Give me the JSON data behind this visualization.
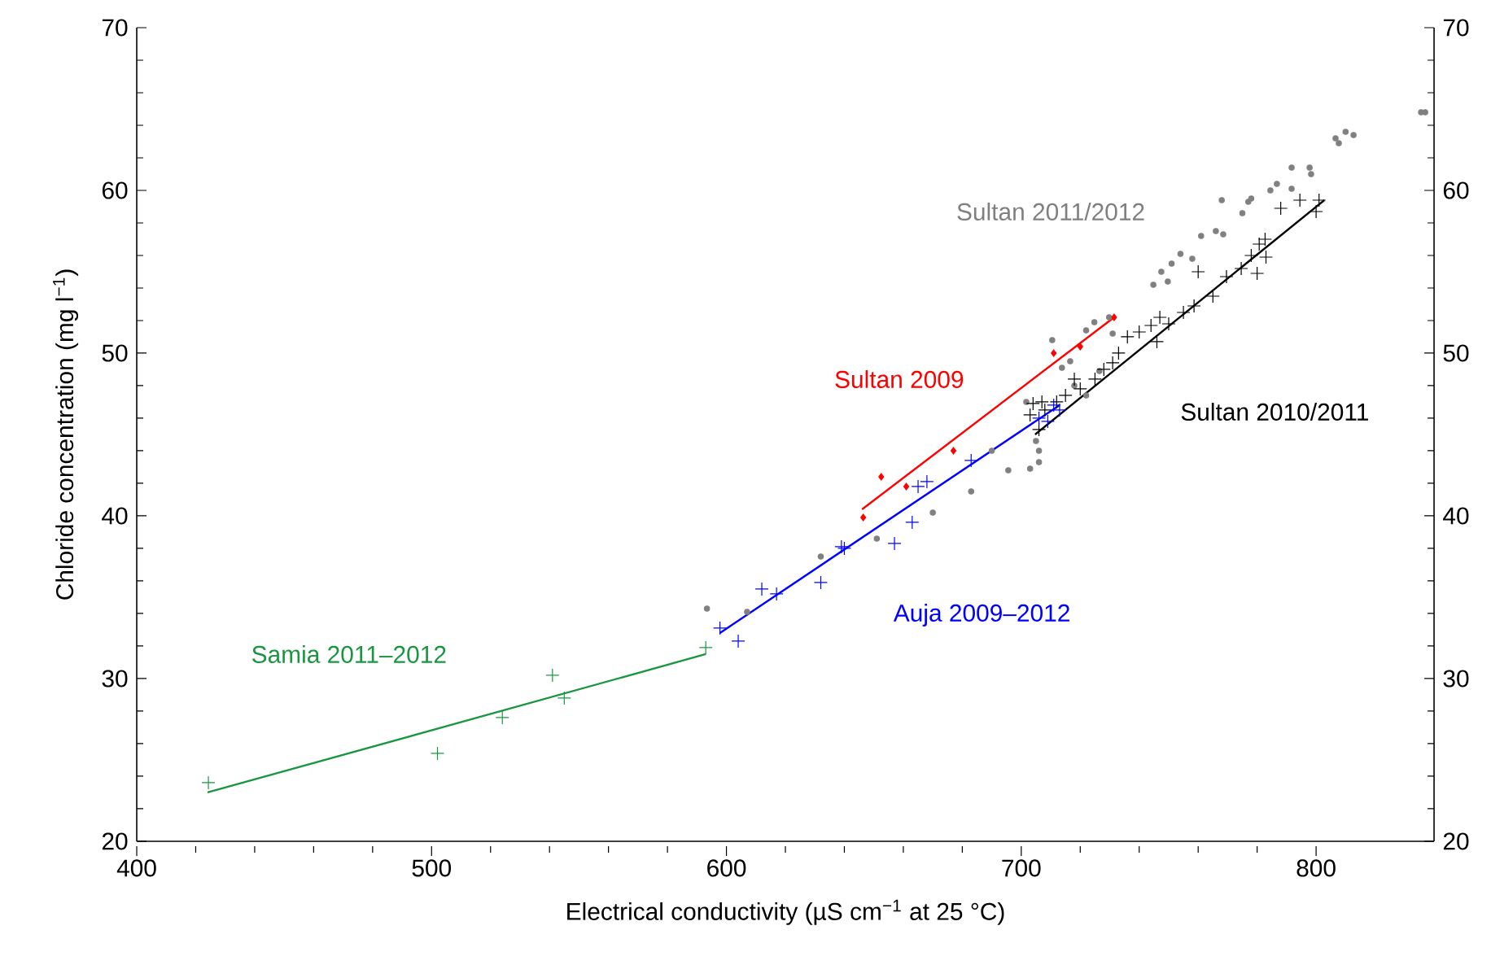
{
  "chart_data": {
    "type": "scatter",
    "xlabel": "Electrical conductivity (µS cm$^{−1}$ at 25 °C)",
    "ylabel": "Chloride concentration (mg l$^{−1}$)",
    "xlim": [
      400,
      840
    ],
    "ylim": [
      20,
      70
    ],
    "xticks": [
      400,
      500,
      600,
      700,
      800
    ],
    "yticks": [
      20,
      30,
      40,
      50,
      60,
      70
    ],
    "y2lim": [
      20,
      70
    ],
    "y2ticks": [
      20,
      30,
      40,
      50,
      60,
      70
    ],
    "grid": false,
    "series": [
      {
        "name": "Sultan 2011/2012",
        "marker": "circle",
        "color": "#808080",
        "x": [
          837,
          835.6,
          810,
          807.7,
          806.6,
          812.7,
          797.8,
          798.3,
          791.7,
          791.7,
          786.7,
          784.5,
          778,
          777,
          775,
          768,
          766,
          768.5,
          761,
          754,
          751,
          758,
          747.5,
          749.7,
          744.8,
          729.8,
          724.8,
          722,
          731,
          710.5,
          716.6,
          713.8,
          718,
          722,
          726.5,
          701.7,
          706,
          705,
          706,
          703,
          695.6,
          690,
          683,
          670,
          651,
          632,
          607,
          593.4
        ],
        "values": [
          64.8,
          64.8,
          63.6,
          62.9,
          63.2,
          63.4,
          61.4,
          61.0,
          61.4,
          60.1,
          60.4,
          60.0,
          59.5,
          59.3,
          58.6,
          59.4,
          57.5,
          57.3,
          57.2,
          56.1,
          55.5,
          55.8,
          55.0,
          54.4,
          54.2,
          52.2,
          51.9,
          51.4,
          51.2,
          50.8,
          49.5,
          49.1,
          48.0,
          47.4,
          48.9,
          47.0,
          44.0,
          44.6,
          43.3,
          42.9,
          42.8,
          44.0,
          41.5,
          40.2,
          38.6,
          37.5,
          34.1,
          34.3
        ]
      },
      {
        "name": "Sultan 2010/2011",
        "marker": "cross",
        "color": "#000000",
        "x": [
          704,
          707,
          703,
          718,
          725,
          731,
          733,
          736,
          744,
          747,
          746,
          758.6,
          765,
          760,
          769.6,
          774.6,
          780,
          778,
          780.7,
          782.7,
          783,
          788,
          794.5,
          800,
          801,
          708,
          712,
          706,
          715,
          720,
          728,
          740,
          750,
          755
        ],
        "values": [
          46.9,
          47.0,
          46.2,
          48.4,
          48.4,
          49.4,
          50.0,
          51.0,
          51.7,
          52.2,
          50.7,
          52.9,
          53.5,
          55.0,
          54.7,
          55.2,
          54.9,
          56.0,
          56.7,
          57.0,
          55.9,
          58.9,
          59.4,
          58.7,
          59.4,
          46.5,
          47.0,
          45.3,
          47.4,
          47.8,
          49.0,
          51.3,
          51.8,
          52.5
        ]
      },
      {
        "type": "line",
        "marker": "none",
        "color": "#000000",
        "x": [
          704.7,
          802.8
        ],
        "values": [
          45.0,
          59.4
        ]
      },
      {
        "name": "Sultan 2009",
        "marker": "diamond",
        "color": "#ff0000",
        "x": [
          646.4,
          652.5,
          661,
          677,
          711,
          720,
          731.5
        ],
        "values": [
          39.9,
          42.4,
          41.8,
          44.0,
          50.0,
          50.4,
          52.2
        ]
      },
      {
        "type": "line",
        "marker": "none",
        "color": "#ff0000",
        "x": [
          646,
          731.5
        ],
        "values": [
          40.4,
          52.2
        ]
      },
      {
        "name": "Auja 2009–2012",
        "marker": "cross",
        "color": "#0000ff",
        "x": [
          597.8,
          604,
          612,
          617,
          632,
          639,
          640,
          657,
          663,
          665,
          668,
          683,
          706,
          709,
          711,
          713
        ],
        "values": [
          33.1,
          32.3,
          35.5,
          35.2,
          35.9,
          38.1,
          38.0,
          38.3,
          39.6,
          41.8,
          42.1,
          43.4,
          46.0,
          45.8,
          46.8,
          46.5
        ]
      },
      {
        "type": "line",
        "marker": "none",
        "color": "#0000ff",
        "x": [
          597.8,
          713
        ],
        "values": [
          32.8,
          46.8
        ]
      },
      {
        "name": "Samia 2011–2012",
        "marker": "cross",
        "color": "#1a9641",
        "x": [
          424.3,
          502,
          524,
          541,
          545,
          593
        ],
        "values": [
          23.6,
          25.4,
          27.6,
          30.2,
          28.8,
          31.9
        ]
      },
      {
        "type": "line",
        "marker": "none",
        "color": "#1a9641",
        "x": [
          424,
          593
        ],
        "values": [
          23.0,
          31.5
        ]
      }
    ]
  }
}
